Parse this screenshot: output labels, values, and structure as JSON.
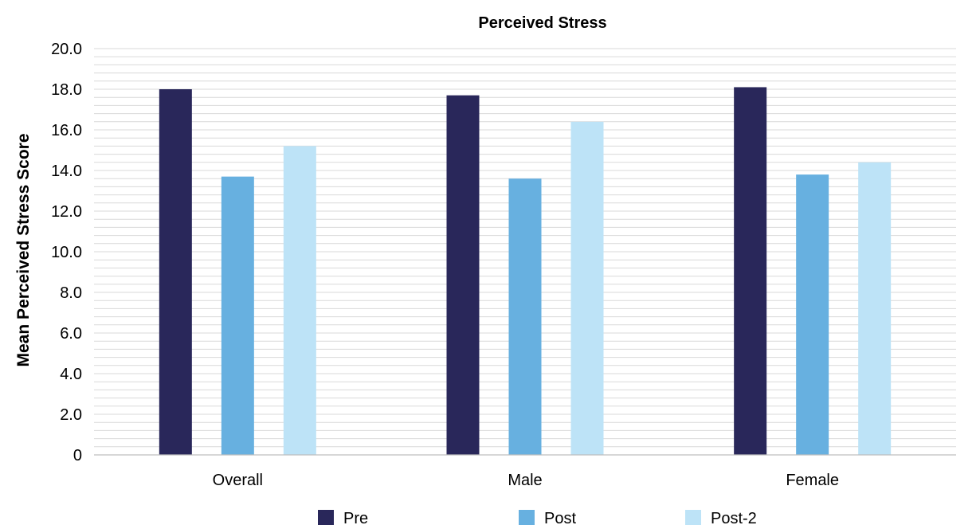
{
  "chart_data": {
    "type": "bar",
    "title": "Perceived Stress",
    "ylabel": "Mean Perceived Stress Score",
    "xlabel": "",
    "ylim": [
      0,
      20
    ],
    "y_ticks": [
      "0",
      "2.0",
      "4.0",
      "6.0",
      "8.0",
      "10.0",
      "12.0",
      "14.0",
      "16.0",
      "18.0",
      "20.0"
    ],
    "minor_grid_step": 0.4,
    "grid": true,
    "legend_position": "bottom",
    "categories": [
      "Overall",
      "Male",
      "Female"
    ],
    "series": [
      {
        "name": "Pre",
        "color": "#29275a",
        "values": [
          18.0,
          17.7,
          18.1
        ]
      },
      {
        "name": "Post",
        "color": "#67b0e0",
        "values": [
          13.7,
          13.6,
          13.8
        ]
      },
      {
        "name": "Post-2",
        "color": "#bde3f7",
        "values": [
          15.2,
          16.4,
          14.4
        ]
      }
    ]
  }
}
